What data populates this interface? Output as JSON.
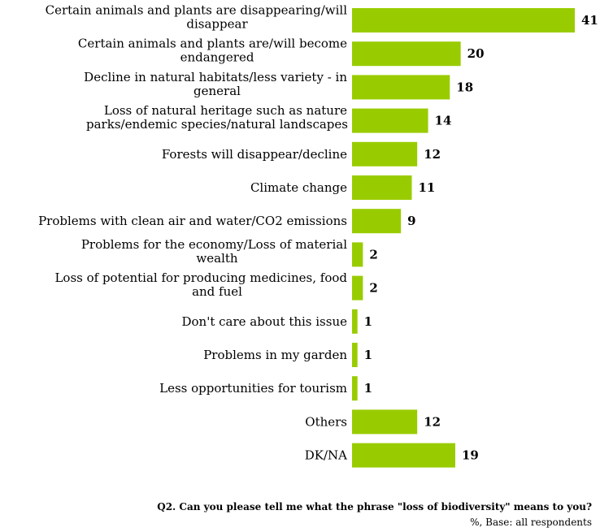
{
  "chart_data": {
    "type": "bar",
    "orientation": "horizontal",
    "bar_color": "#99cc00",
    "categories": [
      [
        "Certain animals and plants are disappearing/will",
        "disappear"
      ],
      [
        "Certain animals and plants are/will become",
        "endangered"
      ],
      [
        "Decline in natural habitats/less variety - in",
        "general"
      ],
      [
        "Loss of natural heritage such as nature",
        "parks/endemic species/natural landscapes"
      ],
      [
        "Forests will disappear/decline"
      ],
      [
        "Climate change"
      ],
      [
        "Problems with clean air and water/CO2 emissions"
      ],
      [
        "Problems for the economy/Loss of material",
        "wealth"
      ],
      [
        "Loss of potential for producing medicines, food",
        "and fuel"
      ],
      [
        "Don't care about this issue"
      ],
      [
        "Problems in my garden"
      ],
      [
        "Less opportunities for tourism"
      ],
      [
        "Others"
      ],
      [
        "DK/NA"
      ]
    ],
    "values": [
      41,
      20,
      18,
      14,
      12,
      11,
      9,
      2,
      2,
      1,
      1,
      1,
      12,
      19
    ],
    "xlim": [
      0,
      41
    ],
    "grid": false,
    "legend": "none"
  },
  "footer": {
    "question": "Q2. Can you please tell me what the phrase \"loss of biodiversity\" means to you?",
    "base": "%, Base: all respondents"
  }
}
